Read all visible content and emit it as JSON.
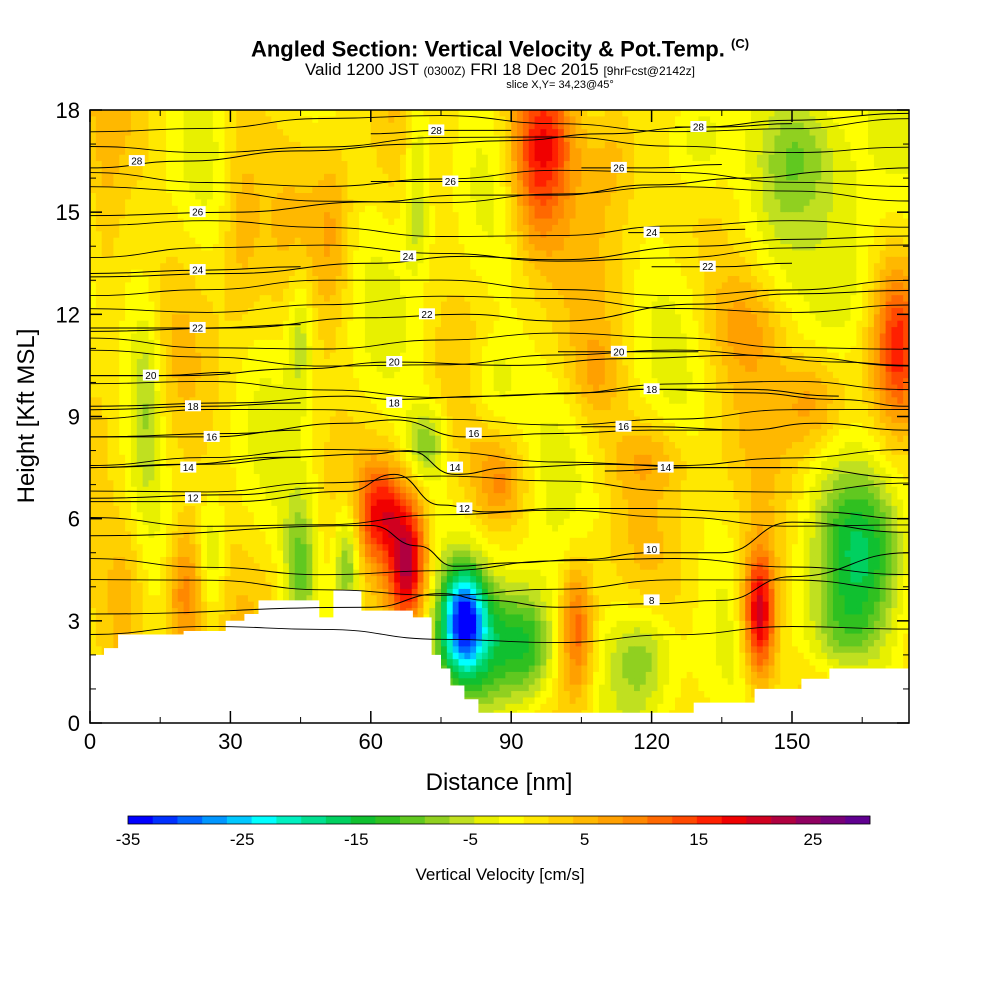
{
  "chart_data": {
    "type": "heatmap",
    "title": "Angled Section: Vertical Velocity & Pot.Temp.",
    "title_tag": "(C)",
    "subtitle_main": "Valid 1200 JST",
    "subtitle_utc": "(0300Z)",
    "subtitle_date": "FRI 18 Dec 2015",
    "subtitle_fcst": "[9hrFcst@2142z]",
    "slice_label": "slice X,Y= 34,23@45°",
    "xlabel": "Distance [nm]",
    "ylabel": "Height [Kft MSL]",
    "xlim": [
      0,
      175
    ],
    "ylim": [
      0,
      18
    ],
    "x_ticks": [
      "0",
      "30",
      "60",
      "90",
      "120",
      "150"
    ],
    "y_ticks": [
      "0",
      "3",
      "6",
      "9",
      "12",
      "15",
      "18"
    ],
    "colorbar": {
      "title": "Vertical Velocity [cm/s]",
      "min": -35,
      "max": 30,
      "tick_labels": [
        "-35",
        "-25",
        "-15",
        "-5",
        "5",
        "15",
        "25"
      ],
      "colors": [
        "#0000ff",
        "#0030ff",
        "#0064ff",
        "#0096ff",
        "#00c8ff",
        "#00ffff",
        "#00f0c0",
        "#00e090",
        "#00d060",
        "#10c030",
        "#30c020",
        "#60c820",
        "#90d020",
        "#c0e020",
        "#e8f000",
        "#ffff00",
        "#ffe800",
        "#ffd000",
        "#ffb800",
        "#ffa000",
        "#ff8800",
        "#ff6800",
        "#ff4800",
        "#ff2000",
        "#f00000",
        "#d00020",
        "#b00040",
        "#900060",
        "#780078",
        "#600090"
      ]
    },
    "terrain": [
      [
        0,
        2.0
      ],
      [
        3,
        2.0
      ],
      [
        3,
        2.2
      ],
      [
        6,
        2.2
      ],
      [
        6,
        2.6
      ],
      [
        20,
        2.6
      ],
      [
        20,
        2.7
      ],
      [
        29,
        2.7
      ],
      [
        29,
        3.0
      ],
      [
        33,
        3.0
      ],
      [
        33,
        3.2
      ],
      [
        36,
        3.2
      ],
      [
        36,
        3.6
      ],
      [
        49,
        3.6
      ],
      [
        49,
        3.1
      ],
      [
        52,
        3.1
      ],
      [
        52,
        3.9
      ],
      [
        58,
        3.9
      ],
      [
        58,
        3.3
      ],
      [
        69,
        3.3
      ],
      [
        69,
        3.1
      ],
      [
        73,
        3.1
      ],
      [
        73,
        2.0
      ],
      [
        75,
        2.0
      ],
      [
        75,
        1.6
      ],
      [
        77,
        1.6
      ],
      [
        77,
        1.1
      ],
      [
        80,
        1.1
      ],
      [
        80,
        0.7
      ],
      [
        83,
        0.7
      ],
      [
        83,
        0.3
      ],
      [
        129,
        0.3
      ],
      [
        129,
        0.6
      ],
      [
        142,
        0.6
      ],
      [
        142,
        1.0
      ],
      [
        152,
        1.0
      ],
      [
        152,
        1.3
      ],
      [
        158,
        1.3
      ],
      [
        158,
        1.6
      ],
      [
        175,
        1.6
      ]
    ],
    "isentropes": [
      {
        "label": "8",
        "x": [
          0,
          60,
          75,
          85,
          100,
          120,
          135,
          150,
          175
        ],
        "y": [
          3.2,
          3.4,
          3.8,
          3.6,
          3.4,
          3.5,
          3.6,
          4.3,
          5.0
        ],
        "label_at": [
          120,
          3.6
        ]
      },
      {
        "label": "10",
        "x": [
          0,
          60,
          70,
          78,
          90,
          105,
          120,
          135,
          150,
          175
        ],
        "y": [
          5.5,
          5.8,
          5.2,
          4.6,
          4.7,
          4.8,
          5.0,
          5.0,
          5.9,
          5.6
        ],
        "label_at": [
          120,
          5.1
        ]
      },
      {
        "label": "12",
        "x": [
          0,
          30,
          55,
          65,
          75,
          85,
          100,
          120,
          140,
          155,
          175
        ],
        "y": [
          6.5,
          6.5,
          6.8,
          7.3,
          6.4,
          6.2,
          6.3,
          6.3,
          6.2,
          6.2,
          6.0
        ],
        "label_at": [
          80,
          6.3
        ]
      },
      {
        "label": "12",
        "x": [
          0,
          30,
          50
        ],
        "y": [
          6.6,
          6.7,
          6.9
        ],
        "label_at": [
          22,
          6.6
        ]
      },
      {
        "label": "14",
        "x": [
          0,
          20,
          40,
          60,
          68,
          78,
          90,
          110,
          130,
          150,
          175
        ],
        "y": [
          7.5,
          7.6,
          7.8,
          7.9,
          8.0,
          7.3,
          7.5,
          7.6,
          7.5,
          7.5,
          7.2
        ],
        "label_at": [
          78,
          7.5
        ]
      },
      {
        "label": "14",
        "x": [
          0,
          25,
          45
        ],
        "y": [
          7.5,
          7.6,
          7.8
        ],
        "label_at": [
          21,
          7.5
        ]
      },
      {
        "label": "14",
        "x": [
          110,
          130,
          150
        ],
        "y": [
          7.4,
          7.5,
          7.5
        ],
        "label_at": [
          123,
          7.5
        ]
      },
      {
        "label": "16",
        "x": [
          0,
          30,
          55,
          65,
          80,
          100,
          120,
          140,
          155,
          175
        ],
        "y": [
          8.4,
          8.5,
          8.8,
          8.9,
          8.4,
          8.5,
          8.6,
          8.6,
          8.8,
          8.6
        ],
        "label_at": [
          82,
          8.5
        ]
      },
      {
        "label": "16",
        "x": [
          0,
          25,
          45
        ],
        "y": [
          8.4,
          8.4,
          8.6
        ],
        "label_at": [
          26,
          8.4
        ]
      },
      {
        "label": "16",
        "x": [
          105,
          120,
          140
        ],
        "y": [
          8.7,
          8.7,
          8.6
        ],
        "label_at": [
          114,
          8.7
        ]
      },
      {
        "label": "18",
        "x": [
          0,
          30,
          55,
          65,
          85,
          105,
          120,
          140,
          160,
          175
        ],
        "y": [
          9.3,
          9.4,
          9.6,
          9.5,
          9.6,
          9.7,
          9.8,
          9.7,
          9.5,
          9.3
        ],
        "label_at": [
          65,
          9.4
        ]
      },
      {
        "label": "18",
        "x": [
          0,
          25,
          45
        ],
        "y": [
          9.2,
          9.3,
          9.4
        ],
        "label_at": [
          22,
          9.3
        ]
      },
      {
        "label": "18",
        "x": [
          115,
          140,
          160
        ],
        "y": [
          9.8,
          9.8,
          9.6
        ],
        "label_at": [
          120,
          9.8
        ]
      },
      {
        "label": "20",
        "x": [
          0,
          20,
          45,
          65,
          90,
          115,
          140,
          160,
          175
        ],
        "y": [
          10.2,
          10.2,
          10.4,
          10.6,
          10.5,
          10.7,
          10.8,
          10.6,
          10.5
        ],
        "label_at": [
          65,
          10.6
        ]
      },
      {
        "label": "20",
        "x": [
          0,
          15,
          30
        ],
        "y": [
          10.2,
          10.2,
          10.3
        ],
        "label_at": [
          13,
          10.2
        ]
      },
      {
        "label": "20",
        "x": [
          100,
          115,
          130
        ],
        "y": [
          10.9,
          10.9,
          10.9
        ],
        "label_at": [
          113,
          10.9
        ]
      },
      {
        "label": "22",
        "x": [
          0,
          30,
          60,
          80,
          100,
          130,
          150,
          175
        ],
        "y": [
          11.5,
          11.6,
          11.9,
          12.0,
          11.8,
          12.3,
          12.6,
          12.7
        ],
        "label_at": [
          72,
          12.0
        ]
      },
      {
        "label": "22",
        "x": [
          0,
          25,
          45
        ],
        "y": [
          11.6,
          11.6,
          11.7
        ],
        "label_at": [
          23,
          11.6
        ]
      },
      {
        "label": "22",
        "x": [
          120,
          135,
          150
        ],
        "y": [
          13.4,
          13.4,
          13.5
        ],
        "label_at": [
          132,
          13.4
        ]
      },
      {
        "label": "24",
        "x": [
          0,
          30,
          60,
          80,
          100,
          130,
          150,
          175
        ],
        "y": [
          13.1,
          13.2,
          13.5,
          13.7,
          13.6,
          14.0,
          14.2,
          14.3
        ],
        "label_at": [
          68,
          13.7
        ]
      },
      {
        "label": "24",
        "x": [
          0,
          25,
          45
        ],
        "y": [
          13.2,
          13.3,
          13.4
        ],
        "label_at": [
          23,
          13.3
        ]
      },
      {
        "label": "24",
        "x": [
          115,
          125,
          140
        ],
        "y": [
          14.4,
          14.4,
          14.5
        ],
        "label_at": [
          120,
          14.4
        ]
      },
      {
        "label": "26",
        "x": [
          0,
          30,
          60,
          80,
          100,
          120,
          140,
          160,
          175
        ],
        "y": [
          14.9,
          15.0,
          15.3,
          15.5,
          15.5,
          15.8,
          16.0,
          16.2,
          16.3
        ],
        "label_at": [
          23,
          15.0
        ]
      },
      {
        "label": "26",
        "x": [
          60,
          75,
          90
        ],
        "y": [
          15.9,
          15.9,
          15.9
        ],
        "label_at": [
          77,
          15.9
        ]
      },
      {
        "label": "26",
        "x": [
          105,
          120,
          135
        ],
        "y": [
          16.3,
          16.3,
          16.4
        ],
        "label_at": [
          113,
          16.3
        ]
      },
      {
        "label": "28",
        "x": [
          0,
          20,
          45,
          70,
          90,
          110,
          130,
          150,
          175
        ],
        "y": [
          16.3,
          16.5,
          16.8,
          17.0,
          17.1,
          17.3,
          17.5,
          17.7,
          17.9
        ],
        "label_at": [
          10,
          16.5
        ]
      },
      {
        "label": "28",
        "x": [
          60,
          75,
          90
        ],
        "y": [
          17.3,
          17.4,
          17.4
        ],
        "label_at": [
          74,
          17.4
        ]
      },
      {
        "label": "28",
        "x": [
          125,
          135,
          150
        ],
        "y": [
          17.5,
          17.5,
          17.6
        ],
        "label_at": [
          130,
          17.5
        ]
      }
    ],
    "extra_isentropes_y": [
      2.6,
      4.0,
      4.6,
      6.0,
      7.0,
      7.8,
      9.0,
      9.8,
      10.7,
      11.2,
      12.3,
      12.8,
      13.8,
      14.5,
      15.5,
      16.0,
      17.0,
      17.6
    ],
    "w_features": [
      {
        "x": 68,
        "y": 4.6,
        "sx": 3.0,
        "sy": 1.4,
        "w": 22
      },
      {
        "x": 62,
        "y": 6.2,
        "sx": 3.5,
        "sy": 1.0,
        "w": 14
      },
      {
        "x": 143,
        "y": 3.2,
        "sx": 2.5,
        "sy": 1.4,
        "w": 22
      },
      {
        "x": 80,
        "y": 3.1,
        "sx": 3.0,
        "sy": 1.0,
        "w": -24
      },
      {
        "x": 85,
        "y": 2.3,
        "sx": 8.0,
        "sy": 1.4,
        "w": -14
      },
      {
        "x": 55,
        "y": 4.8,
        "sx": 2.0,
        "sy": 1.3,
        "w": -12
      },
      {
        "x": 45,
        "y": 4.6,
        "sx": 2.5,
        "sy": 1.5,
        "w": -10
      },
      {
        "x": 104,
        "y": 2.8,
        "sx": 2.5,
        "sy": 1.4,
        "w": 12
      },
      {
        "x": 94,
        "y": 2.2,
        "sx": 4.0,
        "sy": 1.2,
        "w": -10
      },
      {
        "x": 118,
        "y": 2.0,
        "sx": 5.0,
        "sy": 1.1,
        "w": -9
      },
      {
        "x": 165,
        "y": 5.0,
        "sx": 7.0,
        "sy": 1.6,
        "w": -13
      },
      {
        "x": 160,
        "y": 2.6,
        "sx": 6.0,
        "sy": 1.0,
        "w": -8
      },
      {
        "x": 20,
        "y": 3.8,
        "sx": 3.0,
        "sy": 1.5,
        "w": 11
      },
      {
        "x": 8,
        "y": 4.0,
        "sx": 3.5,
        "sy": 1.6,
        "w": 6
      },
      {
        "x": 26,
        "y": 4.8,
        "sx": 2.0,
        "sy": 1.3,
        "w": -6
      },
      {
        "x": 12,
        "y": 9.6,
        "sx": 2.5,
        "sy": 2.0,
        "w": -8
      },
      {
        "x": 45,
        "y": 11.4,
        "sx": 2.0,
        "sy": 1.4,
        "w": -7
      },
      {
        "x": 72,
        "y": 8.2,
        "sx": 3.0,
        "sy": 0.8,
        "w": -9
      },
      {
        "x": 70,
        "y": 17.0,
        "sx": 2.0,
        "sy": 1.5,
        "w": -7
      },
      {
        "x": 70,
        "y": 14.6,
        "sx": 2.0,
        "sy": 1.0,
        "w": -5
      },
      {
        "x": 97,
        "y": 17.2,
        "sx": 5.0,
        "sy": 1.4,
        "w": 14
      },
      {
        "x": 95,
        "y": 15.2,
        "sx": 4.0,
        "sy": 1.5,
        "w": 7
      },
      {
        "x": 112,
        "y": 17.0,
        "sx": 4.0,
        "sy": 1.5,
        "w": 6
      },
      {
        "x": 130,
        "y": 17.0,
        "sx": 5.0,
        "sy": 1.2,
        "w": -8
      },
      {
        "x": 152,
        "y": 17.0,
        "sx": 6.0,
        "sy": 1.5,
        "w": -9
      },
      {
        "x": 162,
        "y": 13.0,
        "sx": 5.0,
        "sy": 2.0,
        "w": -7
      },
      {
        "x": 173,
        "y": 11.0,
        "sx": 3.5,
        "sy": 1.6,
        "w": 14
      },
      {
        "x": 155,
        "y": 9.4,
        "sx": 5.0,
        "sy": 1.0,
        "w": 7
      },
      {
        "x": 140,
        "y": 11.8,
        "sx": 6.0,
        "sy": 1.2,
        "w": 6
      },
      {
        "x": 86,
        "y": 10.0,
        "sx": 4.0,
        "sy": 1.0,
        "w": -6
      },
      {
        "x": 108,
        "y": 10.2,
        "sx": 4.0,
        "sy": 1.0,
        "w": 5
      },
      {
        "x": 88,
        "y": 7.0,
        "sx": 4.0,
        "sy": 0.8,
        "w": 7
      },
      {
        "x": 32,
        "y": 15.0,
        "sx": 3.0,
        "sy": 2.5,
        "w": 5
      },
      {
        "x": 3,
        "y": 14.0,
        "sx": 3.0,
        "sy": 3.0,
        "w": 5
      },
      {
        "x": 52,
        "y": 14.5,
        "sx": 3.0,
        "sy": 2.0,
        "w": 5
      },
      {
        "x": 120,
        "y": 7.8,
        "sx": 6.0,
        "sy": 0.8,
        "w": 5
      }
    ]
  }
}
